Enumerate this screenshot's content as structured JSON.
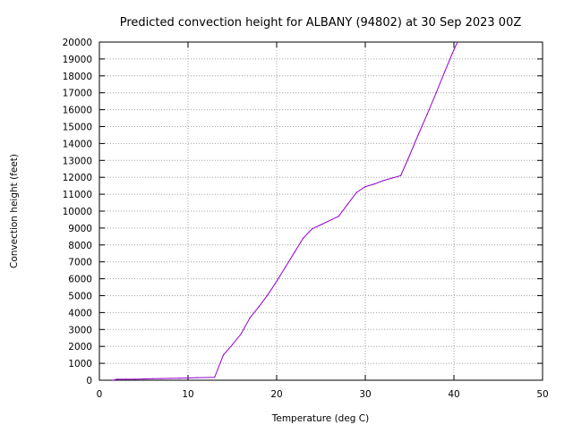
{
  "chart_data": {
    "type": "line",
    "title": "Predicted convection height for ALBANY (94802) at 30 Sep 2023 00Z",
    "xlabel": "Temperature (deg C)",
    "ylabel": "Convection height (feet)",
    "xlim": [
      0,
      50
    ],
    "ylim": [
      0,
      20000
    ],
    "x_ticks": [
      0,
      10,
      20,
      30,
      40,
      50
    ],
    "y_ticks": [
      0,
      1000,
      2000,
      3000,
      4000,
      5000,
      6000,
      7000,
      8000,
      9000,
      10000,
      11000,
      12000,
      13000,
      14000,
      15000,
      16000,
      17000,
      18000,
      19000,
      20000
    ],
    "grid": true,
    "line_color": "#9400D3",
    "series": [
      {
        "x": [
          1.5,
          2,
          3,
          4,
          5,
          6,
          7,
          8,
          9,
          10,
          11,
          12,
          13,
          14,
          15,
          16,
          17,
          18,
          19,
          20,
          21,
          22,
          23,
          24,
          25,
          26,
          27,
          28,
          29,
          30,
          31,
          32,
          33,
          34,
          35,
          36,
          37,
          38,
          39,
          40,
          40.4
        ],
        "y": [
          0,
          60,
          60,
          60,
          70,
          90,
          100,
          110,
          120,
          130,
          150,
          160,
          170,
          1500,
          2100,
          2750,
          3700,
          4350,
          5050,
          5850,
          6700,
          7550,
          8400,
          8950,
          9200,
          9450,
          9700,
          10400,
          11100,
          11450,
          11600,
          11800,
          11950,
          12100,
          13300,
          14550,
          15750,
          17000,
          18300,
          19550,
          20000
        ]
      }
    ]
  }
}
